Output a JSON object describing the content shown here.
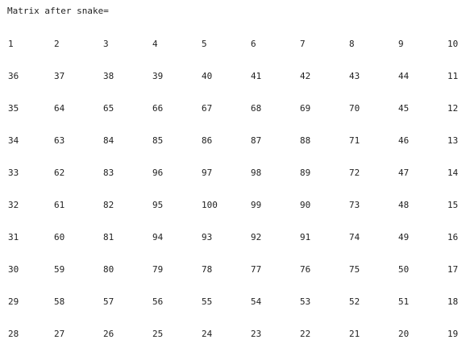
{
  "console": {
    "title": "Matrix after snake=",
    "matrix": [
      [
        "1",
        "2",
        "3",
        "4",
        "5",
        "6",
        "7",
        "8",
        "9",
        "10"
      ],
      [
        "36",
        "37",
        "38",
        "39",
        "40",
        "41",
        "42",
        "43",
        "44",
        "11"
      ],
      [
        "35",
        "64",
        "65",
        "66",
        "67",
        "68",
        "69",
        "70",
        "45",
        "12"
      ],
      [
        "34",
        "63",
        "84",
        "85",
        "86",
        "87",
        "88",
        "71",
        "46",
        "13"
      ],
      [
        "33",
        "62",
        "83",
        "96",
        "97",
        "98",
        "89",
        "72",
        "47",
        "14"
      ],
      [
        "32",
        "61",
        "82",
        "95",
        "100",
        "99",
        "90",
        "73",
        "48",
        "15"
      ],
      [
        "31",
        "60",
        "81",
        "94",
        "93",
        "92",
        "91",
        "74",
        "49",
        "16"
      ],
      [
        "30",
        "59",
        "80",
        "79",
        "78",
        "77",
        "76",
        "75",
        "50",
        "17"
      ],
      [
        "29",
        "58",
        "57",
        "56",
        "55",
        "54",
        "53",
        "52",
        "51",
        "18"
      ],
      [
        "28",
        "27",
        "26",
        "25",
        "24",
        "23",
        "22",
        "21",
        "20",
        "19"
      ]
    ]
  }
}
